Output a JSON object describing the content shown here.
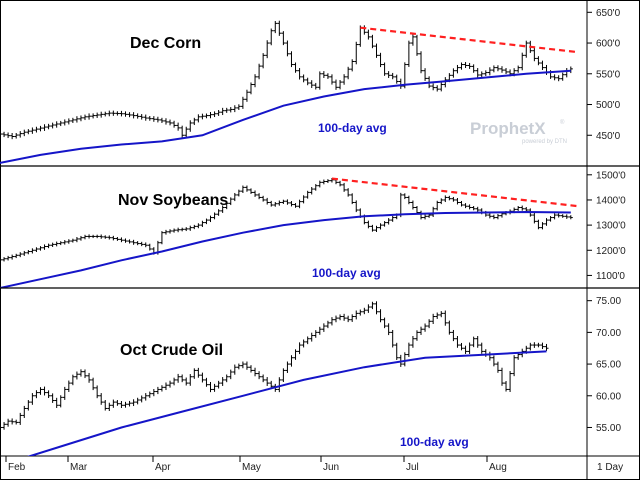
{
  "watermark": {
    "brand": "ProphetX",
    "brand_sup": "®",
    "powered": "powered by DTN"
  },
  "footer": {
    "period": "1 Day"
  },
  "x_axis": {
    "months": [
      "Feb",
      "Mar",
      "Apr",
      "May",
      "Jun",
      "Jul",
      "Aug"
    ]
  },
  "colors": {
    "price": "#000000",
    "avg": "#1515c8",
    "trend": "#ff2020",
    "grid": "#000000"
  },
  "chart_data": [
    {
      "type": "line",
      "title": "Dec Corn",
      "avg_label": "100-day avg",
      "y_ticks": [
        "650'0",
        "600'0",
        "550'0",
        "500'0",
        "450'0"
      ],
      "tick_values": [
        650,
        600,
        550,
        500,
        450
      ],
      "ylim": [
        400,
        670
      ],
      "trend_line": [
        [
          89,
          625
        ],
        [
          143,
          585
        ]
      ],
      "series": [
        {
          "role": "price",
          "points": [
            [
              0,
              452
            ],
            [
              3,
              448
            ],
            [
              6,
              455
            ],
            [
              9,
              460
            ],
            [
              12,
              465
            ],
            [
              15,
              470
            ],
            [
              18,
              475
            ],
            [
              21,
              480
            ],
            [
              24,
              483
            ],
            [
              27,
              486
            ],
            [
              30,
              485
            ],
            [
              33,
              482
            ],
            [
              36,
              478
            ],
            [
              39,
              475
            ],
            [
              42,
              470
            ],
            [
              44,
              462
            ],
            [
              45,
              450
            ],
            [
              47,
              470
            ],
            [
              49,
              480
            ],
            [
              51,
              482
            ],
            [
              53,
              485
            ],
            [
              55,
              490
            ],
            [
              57,
              492
            ],
            [
              59,
              497
            ],
            [
              61,
              520
            ],
            [
              63,
              545
            ],
            [
              65,
              580
            ],
            [
              67,
              620
            ],
            [
              68,
              632
            ],
            [
              70,
              600
            ],
            [
              72,
              565
            ],
            [
              74,
              545
            ],
            [
              76,
              535
            ],
            [
              78,
              528
            ],
            [
              79,
              550
            ],
            [
              81,
              545
            ],
            [
              83,
              528
            ],
            [
              85,
              545
            ],
            [
              87,
              570
            ],
            [
              89,
              625
            ],
            [
              91,
              610
            ],
            [
              93,
              580
            ],
            [
              95,
              550
            ],
            [
              97,
              545
            ],
            [
              99,
              530
            ],
            [
              101,
              600
            ],
            [
              102,
              610
            ],
            [
              104,
              555
            ],
            [
              106,
              530
            ],
            [
              108,
              525
            ],
            [
              110,
              540
            ],
            [
              112,
              555
            ],
            [
              114,
              565
            ],
            [
              116,
              562
            ],
            [
              118,
              548
            ],
            [
              120,
              552
            ],
            [
              122,
              560
            ],
            [
              124,
              556
            ],
            [
              126,
              550
            ],
            [
              128,
              560
            ],
            [
              130,
              600
            ],
            [
              132,
              575
            ],
            [
              134,
              560
            ],
            [
              136,
              545
            ],
            [
              138,
              542
            ],
            [
              140,
              555
            ],
            [
              141,
              558
            ]
          ]
        },
        {
          "role": "avg",
          "points": [
            [
              0,
              405
            ],
            [
              10,
              418
            ],
            [
              20,
              428
            ],
            [
              30,
              435
            ],
            [
              40,
              440
            ],
            [
              50,
              450
            ],
            [
              60,
              475
            ],
            [
              70,
              498
            ],
            [
              80,
              513
            ],
            [
              90,
              525
            ],
            [
              100,
              532
            ],
            [
              110,
              538
            ],
            [
              120,
              544
            ],
            [
              130,
              550
            ],
            [
              141,
              555
            ]
          ]
        }
      ]
    },
    {
      "type": "line",
      "title": "Nov Soybeans",
      "avg_label": "100-day avg",
      "y_ticks": [
        "1500'0",
        "1400'0",
        "1300'0",
        "1200'0",
        "1100'0"
      ],
      "tick_values": [
        1500,
        1400,
        1300,
        1200,
        1100
      ],
      "ylim": [
        1050,
        1535
      ],
      "trend_line": [
        [
          82,
          1485
        ],
        [
          143,
          1375
        ]
      ],
      "series": [
        {
          "role": "price",
          "points": [
            [
              0,
              1162
            ],
            [
              3,
              1175
            ],
            [
              6,
              1190
            ],
            [
              9,
              1205
            ],
            [
              12,
              1220
            ],
            [
              15,
              1230
            ],
            [
              18,
              1240
            ],
            [
              21,
              1255
            ],
            [
              24,
              1255
            ],
            [
              27,
              1250
            ],
            [
              30,
              1240
            ],
            [
              33,
              1230
            ],
            [
              36,
              1220
            ],
            [
              38,
              1190
            ],
            [
              40,
              1270
            ],
            [
              43,
              1280
            ],
            [
              46,
              1285
            ],
            [
              49,
              1300
            ],
            [
              52,
              1330
            ],
            [
              55,
              1370
            ],
            [
              58,
              1420
            ],
            [
              60,
              1450
            ],
            [
              62,
              1430
            ],
            [
              64,
              1410
            ],
            [
              67,
              1380
            ],
            [
              70,
              1395
            ],
            [
              73,
              1375
            ],
            [
              76,
              1430
            ],
            [
              79,
              1470
            ],
            [
              82,
              1480
            ],
            [
              84,
              1460
            ],
            [
              86,
              1420
            ],
            [
              88,
              1360
            ],
            [
              90,
              1310
            ],
            [
              92,
              1280
            ],
            [
              94,
              1300
            ],
            [
              96,
              1320
            ],
            [
              98,
              1340
            ],
            [
              99,
              1420
            ],
            [
              100,
              1410
            ],
            [
              102,
              1370
            ],
            [
              104,
              1330
            ],
            [
              106,
              1340
            ],
            [
              108,
              1390
            ],
            [
              110,
              1410
            ],
            [
              112,
              1400
            ],
            [
              114,
              1380
            ],
            [
              116,
              1370
            ],
            [
              118,
              1360
            ],
            [
              120,
              1340
            ],
            [
              122,
              1330
            ],
            [
              124,
              1345
            ],
            [
              126,
              1355
            ],
            [
              128,
              1370
            ],
            [
              130,
              1360
            ],
            [
              131,
              1340
            ],
            [
              133,
              1290
            ],
            [
              135,
              1320
            ],
            [
              137,
              1340
            ],
            [
              139,
              1335
            ],
            [
              141,
              1330
            ]
          ]
        },
        {
          "role": "avg",
          "points": [
            [
              0,
              1050
            ],
            [
              10,
              1085
            ],
            [
              20,
              1120
            ],
            [
              30,
              1160
            ],
            [
              40,
              1195
            ],
            [
              50,
              1235
            ],
            [
              60,
              1270
            ],
            [
              70,
              1300
            ],
            [
              80,
              1320
            ],
            [
              90,
              1335
            ],
            [
              100,
              1343
            ],
            [
              110,
              1348
            ],
            [
              120,
              1350
            ],
            [
              130,
              1352
            ],
            [
              141,
              1350
            ]
          ]
        }
      ]
    },
    {
      "type": "line",
      "title": "Oct Crude Oil",
      "avg_label": "100-day avg",
      "y_ticks": [
        "75.00",
        "70.00",
        "65.00",
        "60.00",
        "55.00"
      ],
      "tick_values": [
        75,
        70,
        65,
        60,
        55
      ],
      "ylim": [
        50.5,
        77
      ],
      "series": [
        {
          "role": "price",
          "points": [
            [
              0,
              55
            ],
            [
              2,
              56
            ],
            [
              4,
              55.8
            ],
            [
              6,
              58
            ],
            [
              8,
              60
            ],
            [
              10,
              61
            ],
            [
              12,
              60
            ],
            [
              14,
              58.5
            ],
            [
              16,
              61
            ],
            [
              18,
              63
            ],
            [
              20,
              63.8
            ],
            [
              22,
              62.5
            ],
            [
              24,
              60
            ],
            [
              26,
              58
            ],
            [
              28,
              59
            ],
            [
              30,
              58.5
            ],
            [
              33,
              59
            ],
            [
              36,
              60
            ],
            [
              39,
              61
            ],
            [
              42,
              62
            ],
            [
              44,
              63
            ],
            [
              46,
              62
            ],
            [
              48,
              64
            ],
            [
              50,
              62.5
            ],
            [
              52,
              61
            ],
            [
              54,
              62
            ],
            [
              56,
              63
            ],
            [
              58,
              64.5
            ],
            [
              60,
              65
            ],
            [
              62,
              64
            ],
            [
              64,
              63
            ],
            [
              66,
              62
            ],
            [
              68,
              61
            ],
            [
              70,
              64
            ],
            [
              72,
              66
            ],
            [
              74,
              68
            ],
            [
              76,
              69
            ],
            [
              78,
              70
            ],
            [
              80,
              71
            ],
            [
              82,
              72
            ],
            [
              84,
              72.5
            ],
            [
              86,
              72
            ],
            [
              88,
              73
            ],
            [
              90,
              73.5
            ],
            [
              92,
              74.5
            ],
            [
              94,
              72
            ],
            [
              96,
              70
            ],
            [
              98,
              66
            ],
            [
              99,
              65
            ],
            [
              101,
              68
            ],
            [
              103,
              70
            ],
            [
              105,
              71
            ],
            [
              107,
              72.5
            ],
            [
              109,
              73
            ],
            [
              111,
              70
            ],
            [
              113,
              68
            ],
            [
              115,
              67
            ],
            [
              117,
              69
            ],
            [
              119,
              67
            ],
            [
              121,
              66
            ],
            [
              123,
              64
            ],
            [
              124,
              62
            ],
            [
              125,
              61
            ],
            [
              127,
              66
            ],
            [
              129,
              67
            ],
            [
              131,
              68
            ],
            [
              133,
              68
            ],
            [
              135,
              67.5
            ]
          ]
        },
        {
          "role": "avg",
          "points": [
            [
              0,
              49
            ],
            [
              15,
              52
            ],
            [
              30,
              55
            ],
            [
              45,
              57.5
            ],
            [
              60,
              60
            ],
            [
              75,
              62.5
            ],
            [
              90,
              64.5
            ],
            [
              105,
              66
            ],
            [
              120,
              66.5
            ],
            [
              135,
              67
            ]
          ]
        }
      ]
    }
  ]
}
